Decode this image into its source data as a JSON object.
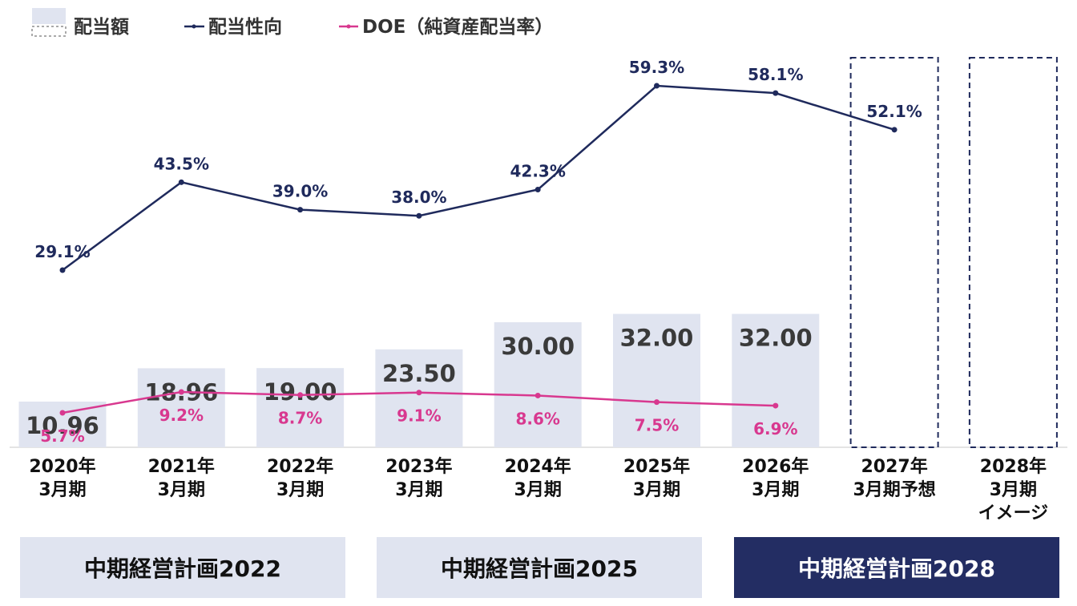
{
  "legend": {
    "dividend_label": "配当額",
    "payout_label": "配当性向",
    "doe_label": "DOE（純資産配当率）"
  },
  "plans": [
    {
      "label": "中期経営計画2022",
      "color": "#e0e4f0",
      "text_color": "#111111"
    },
    {
      "label": "中期経営計画2025",
      "color": "#e0e4f0",
      "text_color": "#111111"
    },
    {
      "label": "中期経営計画2028",
      "color": "#232d63",
      "text_color": "#ffffff"
    }
  ],
  "colors": {
    "bar_fill": "#e0e4f0",
    "payout_line": "#1f2a5c",
    "doe_line": "#d8388f"
  },
  "chart_data": {
    "type": "bar",
    "categories": [
      [
        "2020年",
        "3月期"
      ],
      [
        "2021年",
        "3月期"
      ],
      [
        "2022年",
        "3月期"
      ],
      [
        "2023年",
        "3月期"
      ],
      [
        "2024年",
        "3月期"
      ],
      [
        "2025年",
        "3月期"
      ],
      [
        "2026年",
        "3月期"
      ],
      [
        "2027年",
        "3月期予想"
      ],
      [
        "2028年",
        "3月期",
        "イメージ"
      ]
    ],
    "dividend": {
      "values": [
        10.96,
        18.96,
        19.0,
        23.5,
        30.0,
        32.0,
        32.0,
        null,
        null
      ],
      "labels": [
        "10.96",
        "18.96",
        "19.00",
        "23.50",
        "30.00",
        "32.00",
        "32.00",
        "",
        ""
      ],
      "forecast_dashed": [
        false,
        false,
        false,
        false,
        false,
        false,
        false,
        true,
        true
      ]
    },
    "series": [
      {
        "name": "配当性向",
        "values": [
          29.1,
          43.5,
          39.0,
          38.0,
          42.3,
          59.3,
          58.1,
          52.1,
          null
        ],
        "labels": [
          "29.1%",
          "43.5%",
          "39.0%",
          "38.0%",
          "42.3%",
          "59.3%",
          "58.1%",
          "52.1%",
          ""
        ]
      },
      {
        "name": "DOE（純資産配当率）",
        "values": [
          5.7,
          9.2,
          8.7,
          9.1,
          8.6,
          7.5,
          6.9,
          null,
          null
        ],
        "labels": [
          "5.7%",
          "9.2%",
          "8.7%",
          "9.1%",
          "8.6%",
          "7.5%",
          "6.9%",
          "",
          ""
        ]
      }
    ],
    "legend_position": "top-left",
    "grid": false
  }
}
